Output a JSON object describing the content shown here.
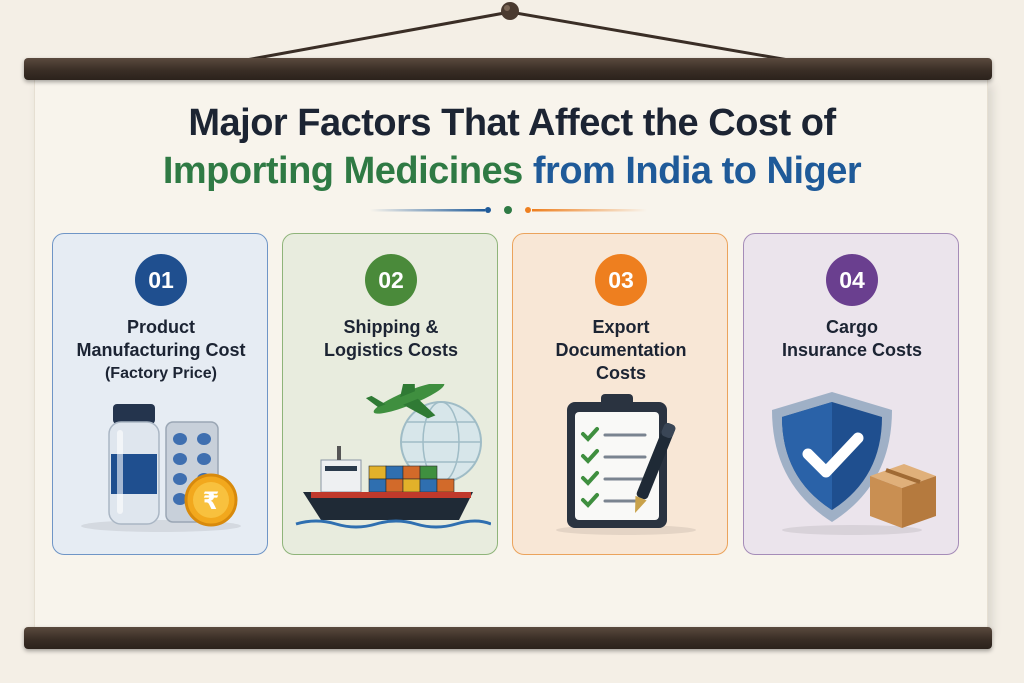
{
  "title": {
    "line1": "Major Factors That Affect the Cost of",
    "line2_green": "Importing Medicines",
    "line2_blue": "from India to Niger"
  },
  "colors": {
    "navy": "#1c2433",
    "green": "#2f7a44",
    "blue": "#1f5a99",
    "orange": "#ee7f1f",
    "purple": "#6a3f8f",
    "rod": "#3a2e26"
  },
  "cards": [
    {
      "number": "01",
      "lines": [
        "Product",
        "Manufacturing Cost"
      ],
      "sub": "(Factory Price)",
      "icon": "medicine-bottle-pills-rupee-icon"
    },
    {
      "number": "02",
      "lines": [
        "Shipping &",
        "Logistics Costs"
      ],
      "sub": "",
      "icon": "cargo-ship-plane-globe-icon"
    },
    {
      "number": "03",
      "lines": [
        "Export",
        "Documentation",
        "Costs"
      ],
      "sub": "",
      "icon": "clipboard-checklist-pen-icon"
    },
    {
      "number": "04",
      "lines": [
        "Cargo",
        "Insurance Costs"
      ],
      "sub": "",
      "icon": "shield-check-box-icon"
    }
  ],
  "rupee_symbol": "₹"
}
